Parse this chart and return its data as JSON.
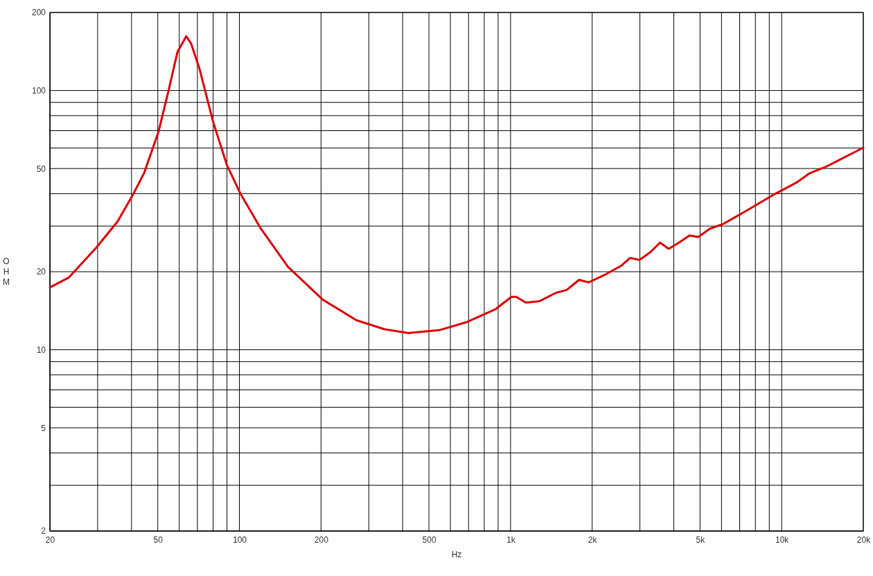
{
  "chart_data": {
    "type": "line",
    "xlabel": "Hz",
    "ylabel": "OHM",
    "log": "xy",
    "grid": true,
    "marker": "none",
    "line_style": "solid",
    "xlim": [
      20,
      20000
    ],
    "ylim": [
      2,
      200
    ],
    "xticks": [
      20,
      {
        "value": 30,
        "label": null
      },
      {
        "value": 40,
        "label": null
      },
      50,
      {
        "value": 60,
        "label": null
      },
      {
        "value": 70,
        "label": null
      },
      {
        "value": 80,
        "label": null
      },
      {
        "value": 90,
        "label": null
      },
      100,
      200,
      {
        "value": 300,
        "label": null
      },
      {
        "value": 400,
        "label": null
      },
      500,
      {
        "value": 600,
        "label": null
      },
      {
        "value": 700,
        "label": null
      },
      {
        "value": 800,
        "label": null
      },
      {
        "value": 900,
        "label": null
      },
      {
        "value": 1000,
        "label": "1k"
      },
      {
        "value": 2000,
        "label": "2k"
      },
      {
        "value": 3000,
        "label": null
      },
      {
        "value": 4000,
        "label": null
      },
      {
        "value": 5000,
        "label": "5k"
      },
      {
        "value": 6000,
        "label": null
      },
      {
        "value": 7000,
        "label": null
      },
      {
        "value": 8000,
        "label": null
      },
      {
        "value": 9000,
        "label": null
      },
      {
        "value": 10000,
        "label": "10k"
      },
      {
        "value": 20000,
        "label": "20k"
      }
    ],
    "yticks": [
      2,
      {
        "value": 3,
        "label": null
      },
      {
        "value": 4,
        "label": null
      },
      5,
      {
        "value": 6,
        "label": null
      },
      {
        "value": 7,
        "label": null
      },
      {
        "value": 8,
        "label": null
      },
      {
        "value": 9,
        "label": null
      },
      10,
      20,
      {
        "value": 30,
        "label": null
      },
      {
        "value": 40,
        "label": null
      },
      50,
      {
        "value": 60,
        "label": null
      },
      {
        "value": 70,
        "label": null
      },
      {
        "value": 80,
        "label": null
      },
      {
        "value": 90,
        "label": null
      },
      100,
      200
    ],
    "series": [
      {
        "color": "#e00000",
        "x": [
          20,
          23.5,
          29.7,
          35.5,
          40.2,
          44.5,
          50.3,
          54.8,
          59.1,
          63.7,
          66.3,
          71.3,
          79.9,
          89.9,
          101,
          120,
          151,
          203,
          270,
          343,
          420,
          546,
          692,
          877,
          1008,
          1050,
          1137,
          1280,
          1475,
          1610,
          1790,
          1940,
          2215,
          2560,
          2760,
          2990,
          3280,
          3560,
          3830,
          4180,
          4570,
          4920,
          5430,
          6100,
          7490,
          9440,
          11280,
          12700,
          14700,
          20000
        ],
        "values": [
          17.4,
          19.0,
          24.8,
          31.2,
          39.1,
          48.0,
          69.3,
          100,
          141,
          162,
          152,
          121,
          76,
          51.6,
          39.9,
          29.3,
          20.9,
          15.6,
          13.0,
          12.0,
          11.6,
          11.9,
          12.8,
          14.3,
          16.0,
          16.0,
          15.2,
          15.4,
          16.6,
          17.0,
          18.6,
          18.2,
          19.4,
          21.1,
          22.6,
          22.2,
          23.8,
          25.9,
          24.5,
          25.9,
          27.6,
          27.2,
          29.3,
          30.6,
          34.6,
          39.9,
          44.0,
          48.0,
          51.0,
          60.2
        ]
      }
    ]
  }
}
